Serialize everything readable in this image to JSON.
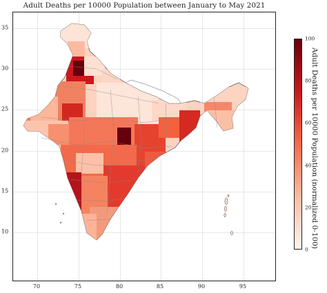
{
  "title": "Adult Deaths per 10000 Population between January to May 2021",
  "colorbar": {
    "label": "Adult Deaths per 10000 Population (normalized 0-100)",
    "ticks": [
      "0",
      "20",
      "40",
      "60",
      "80",
      "100"
    ],
    "min": 0,
    "max": 100,
    "colormap": "Reds",
    "color_low": "#fff5f0",
    "color_high": "#67000d"
  },
  "axes": {
    "x_ticks": [
      "70",
      "75",
      "80",
      "85",
      "90",
      "95"
    ],
    "y_ticks": [
      "10",
      "15",
      "20",
      "25",
      "30",
      "35"
    ],
    "x_range": [
      67,
      98
    ],
    "y_range": [
      6,
      39
    ],
    "grid": true
  },
  "map": {
    "region": "India districts",
    "border_color": "#555555",
    "sea_color": "#ffffff"
  }
}
